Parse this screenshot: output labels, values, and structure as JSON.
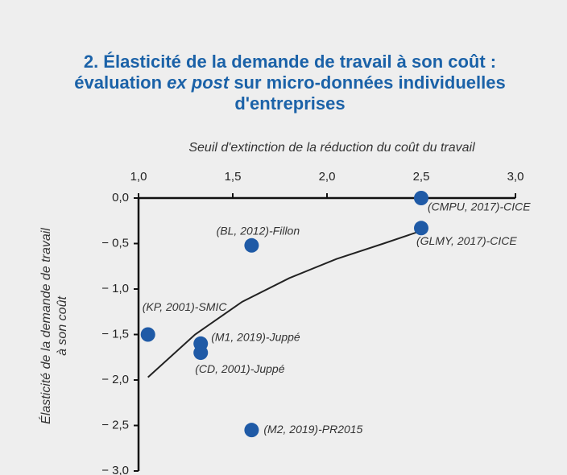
{
  "chart_data": {
    "type": "scatter",
    "title": {
      "line1": "2. Élasticité de la demande de travail à son coût :",
      "line2": [
        "évaluation ",
        "ex post",
        " sur micro-données individuelles"
      ],
      "line3": "d'entreprises"
    },
    "x_label": "Seuil d'extinction de la réduction du coût du travail",
    "y_label": [
      "Élasticité de la demande de travail",
      "à son coût"
    ],
    "xlim": [
      1.0,
      3.0
    ],
    "xticks": [
      {
        "value": 1.0,
        "label": "1,0"
      },
      {
        "value": 1.5,
        "label": "1,5"
      },
      {
        "value": 2.0,
        "label": "2,0"
      },
      {
        "value": 2.5,
        "label": "2,5"
      },
      {
        "value": 3.0,
        "label": "3,0"
      }
    ],
    "ylim": [
      -3.0,
      0.0
    ],
    "yticks": [
      {
        "value": 0.0,
        "label": "0,0"
      },
      {
        "value": -0.5,
        "label": "− 0,5"
      },
      {
        "value": -1.0,
        "label": "− 1,0"
      },
      {
        "value": -1.5,
        "label": "− 1,5"
      },
      {
        "value": -2.0,
        "label": "− 2,0"
      },
      {
        "value": -2.5,
        "label": "− 2,5"
      },
      {
        "value": -3.0,
        "label": "− 3,0"
      }
    ],
    "series": [
      {
        "color": "#1f5aa6",
        "x": [
          2.5,
          2.5,
          1.6,
          1.05,
          1.33,
          1.33,
          1.6
        ],
        "values": [
          0.0,
          -0.33,
          -0.52,
          -1.5,
          -1.6,
          -1.7,
          -2.55
        ],
        "labels": [
          "(CMPU, 2017)-CICE",
          "(GLMY, 2017)-CICE",
          "(BL, 2012)-Fillon",
          "(KP, 2001)-SMIC",
          "(M1, 2019)-Juppé",
          "(CD, 2001)-Juppé",
          "(M2, 2019)-PR2015"
        ]
      }
    ],
    "trend": {
      "color": "#222222",
      "x": [
        1.05,
        1.3,
        1.55,
        1.8,
        2.05,
        2.3,
        2.5
      ],
      "values": [
        -1.97,
        -1.5,
        -1.14,
        -0.88,
        -0.67,
        -0.5,
        -0.36
      ]
    }
  }
}
